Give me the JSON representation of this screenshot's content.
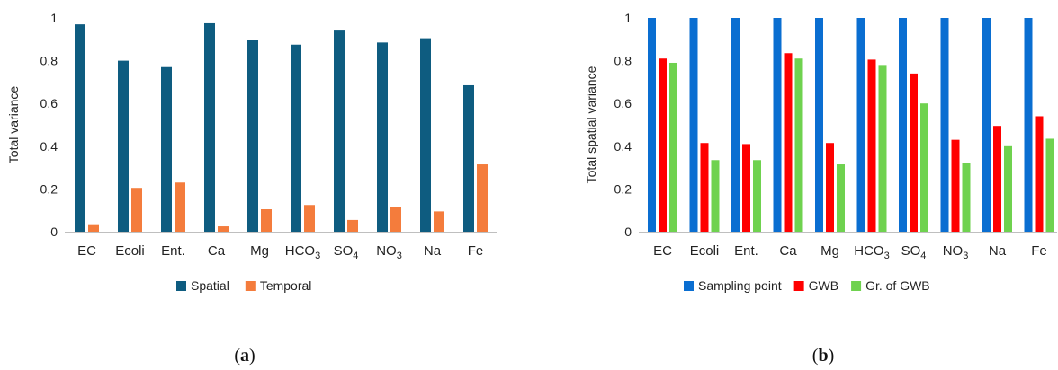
{
  "chart_data": [
    {
      "type": "bar",
      "panel_label": "a",
      "ylabel": "Total variance",
      "ylim": [
        0,
        1
      ],
      "yticks": [
        "0",
        "0.2",
        "0.4",
        "0.6",
        "0.8",
        "1"
      ],
      "categories": [
        "EC",
        "Ecoli",
        "Ent.",
        "Ca",
        "Mg",
        "HCO3",
        "SO4",
        "NO3",
        "Na",
        "Fe"
      ],
      "series": [
        {
          "name": "Spatial",
          "color": "#0e5c80",
          "values": [
            0.97,
            0.8,
            0.77,
            0.975,
            0.895,
            0.875,
            0.945,
            0.885,
            0.905,
            0.685
          ]
        },
        {
          "name": "Temporal",
          "color": "#f47c3c",
          "values": [
            0.035,
            0.205,
            0.23,
            0.025,
            0.105,
            0.125,
            0.055,
            0.115,
            0.095,
            0.315
          ]
        }
      ],
      "legend_position": "bottom"
    },
    {
      "type": "bar",
      "panel_label": "b",
      "ylabel": "Total spatial variance",
      "ylim": [
        0,
        1
      ],
      "yticks": [
        "0",
        "0.2",
        "0.4",
        "0.6",
        "0.8",
        "1"
      ],
      "categories": [
        "EC",
        "Ecoli",
        "Ent.",
        "Ca",
        "Mg",
        "HCO3",
        "SO4",
        "NO3",
        "Na",
        "Fe"
      ],
      "series": [
        {
          "name": "Sampling point",
          "color": "#0a6ed1",
          "values": [
            1,
            1,
            1,
            1,
            1,
            1,
            1,
            1,
            1,
            1
          ]
        },
        {
          "name": "GWB",
          "color": "#ff0000",
          "values": [
            0.81,
            0.415,
            0.41,
            0.835,
            0.415,
            0.805,
            0.74,
            0.43,
            0.495,
            0.54
          ]
        },
        {
          "name": "Gr. of GWB",
          "color": "#6fd24f",
          "values": [
            0.79,
            0.335,
            0.335,
            0.81,
            0.315,
            0.78,
            0.6,
            0.32,
            0.4,
            0.435
          ]
        }
      ],
      "legend_position": "bottom"
    }
  ]
}
